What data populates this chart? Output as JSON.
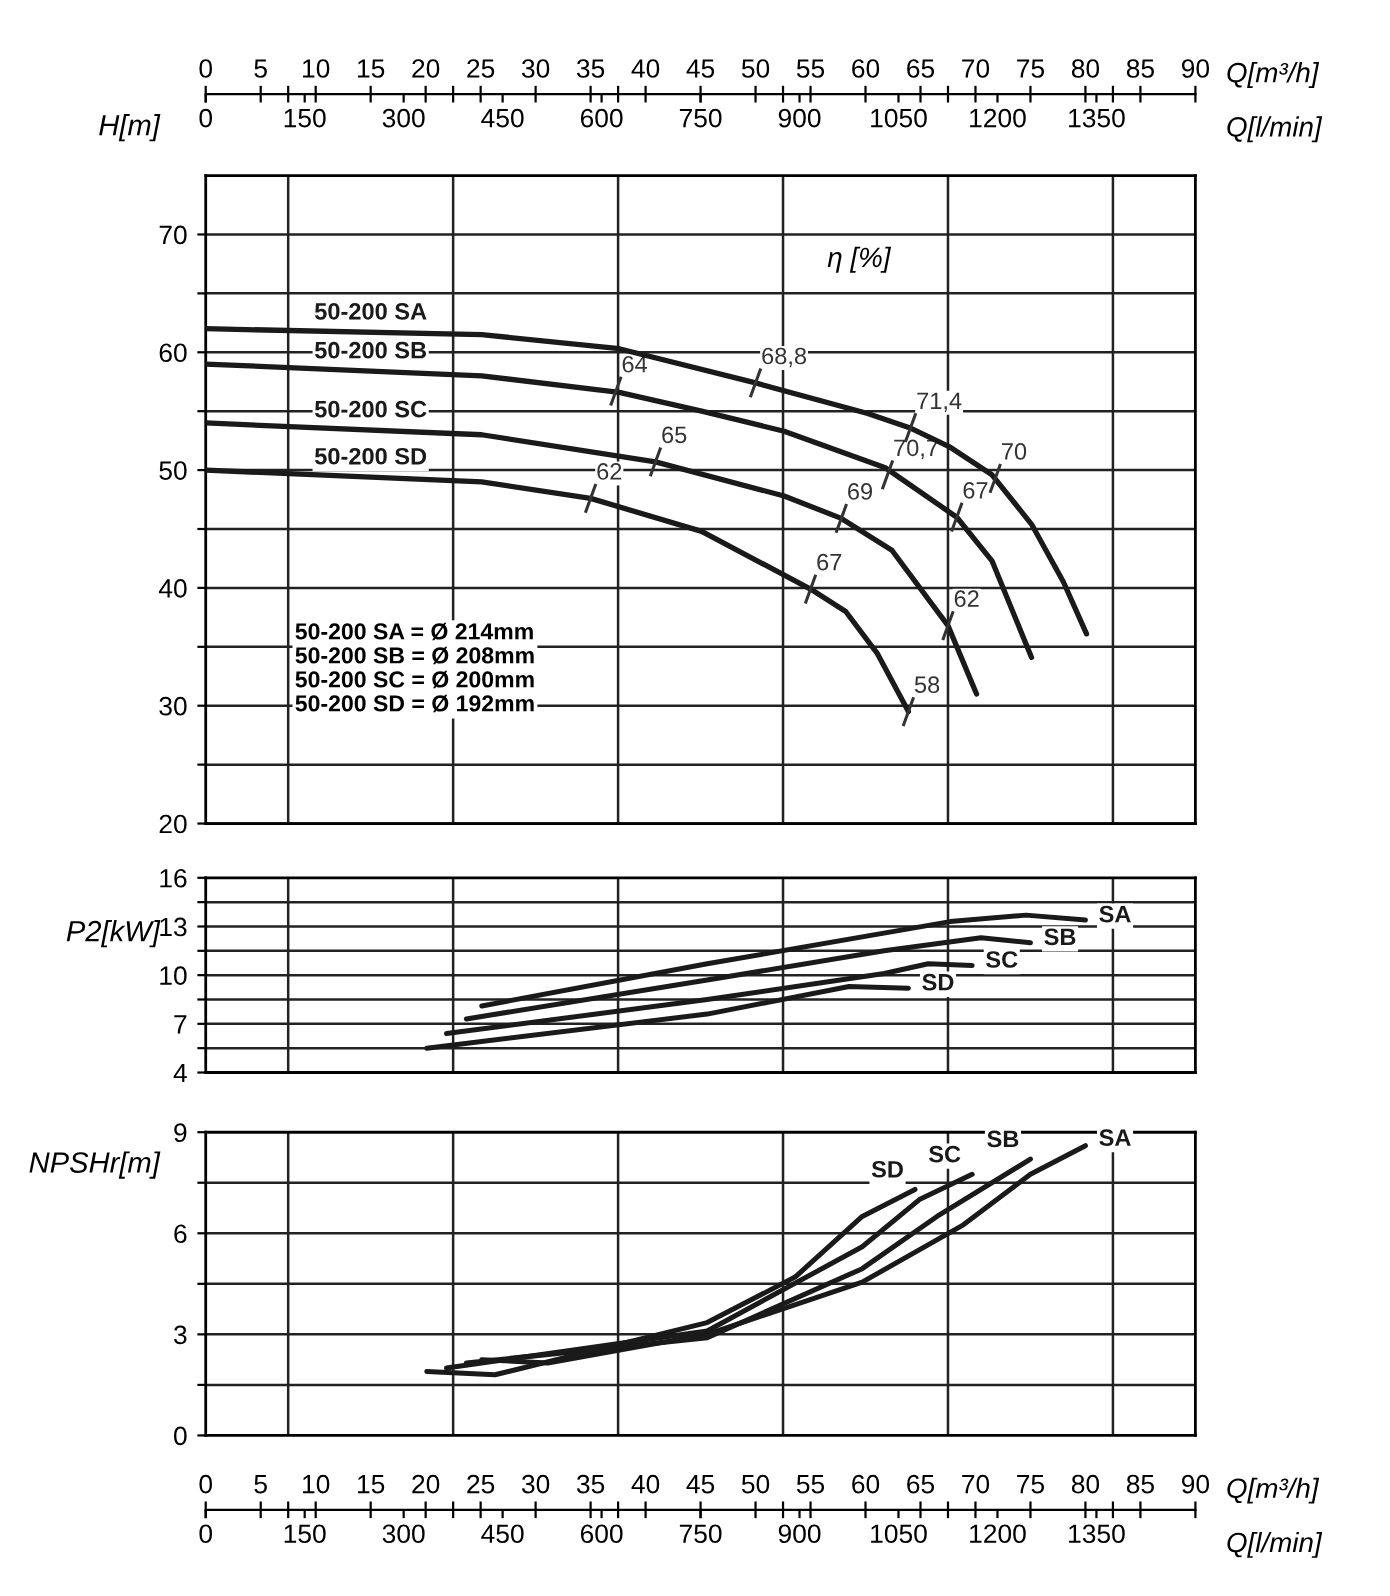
{
  "chart_data": [
    {
      "type": "line",
      "ylabel": "H[m]",
      "xlabel": "Q[m³/h]",
      "xlim": [
        0,
        90
      ],
      "ylim": [
        20,
        75
      ],
      "xticks": [
        0,
        5,
        {
          "value": 7.5,
          "label": null
        },
        10,
        15,
        20,
        {
          "value": 22.5,
          "label": null
        },
        25,
        30,
        35,
        {
          "value": 37.5,
          "label": null
        },
        40,
        45,
        50,
        {
          "value": 52.5,
          "label": null
        },
        55,
        60,
        65,
        {
          "value": 67.5,
          "label": null
        },
        70,
        75,
        80,
        {
          "value": 82.5,
          "label": null
        },
        85,
        90
      ],
      "yticks": [
        20,
        {
          "value": 25,
          "label": null
        },
        30,
        {
          "value": 35,
          "label": null
        },
        40,
        {
          "value": 45,
          "label": null
        },
        50,
        {
          "value": 55,
          "label": null
        },
        60,
        {
          "value": 65,
          "label": null
        },
        70
      ],
      "x2lim": [
        0,
        1500
      ],
      "x2ticks": [
        0,
        150,
        300,
        450,
        600,
        750,
        900,
        1050,
        1200,
        1350
      ],
      "x2label": "Q[l/min]",
      "grid": true,
      "legend": false,
      "marker": "none",
      "line_style": "solid",
      "series": [
        {
          "name": "50-200 SA",
          "color": "#1a1a1a",
          "x": [
            0,
            25.1,
            37.6,
            50,
            60.2,
            64,
            67.6,
            71.5,
            75.1,
            78,
            80.1
          ],
          "values": [
            62.0,
            61.5,
            60.3,
            57.4,
            54.8,
            53.6,
            52.0,
            49.6,
            45.4,
            40.5,
            36.1
          ]
        },
        {
          "name": "50-200 SB",
          "color": "#1a1a1a",
          "x": [
            0,
            25.1,
            37.6,
            45.1,
            52.6,
            61.8,
            68.3,
            71.5,
            75.1
          ],
          "values": [
            59.0,
            58.0,
            56.6,
            55.0,
            53.3,
            50.2,
            46.0,
            42.3,
            34.1
          ]
        },
        {
          "name": "50-200 SC",
          "color": "#1a1a1a",
          "x": [
            0,
            25.1,
            40.9,
            52.6,
            57.8,
            62.4,
            67.5,
            70.1
          ],
          "values": [
            54.0,
            53.0,
            50.7,
            47.8,
            45.9,
            43.2,
            36.8,
            31.0
          ]
        },
        {
          "name": "50-200 SD",
          "color": "#1a1a1a",
          "x": [
            0,
            25.1,
            35.0,
            45.1,
            55.0,
            58.2,
            61.1,
            63.9
          ],
          "values": [
            50.0,
            49.0,
            47.6,
            44.8,
            39.9,
            38.0,
            34.4,
            29.5
          ]
        }
      ],
      "annotations": [
        "η [%]",
        "50-200 SA = Ø 214mm\n50-200 SB = Ø 208mm\n50-200 SC = Ø 200mm\n50-200 SD = Ø 192mm",
        {
          "text": "64",
          "x": 37.3,
          "y": 56.7
        },
        {
          "text": "68,8",
          "x": 50,
          "y": 57.4
        },
        {
          "text": "71,4",
          "x": 64.1,
          "y": 53.6
        },
        {
          "text": "70",
          "x": 71.8,
          "y": 49.3
        },
        {
          "text": "70,7",
          "x": 62.0,
          "y": 49.6
        },
        {
          "text": "67",
          "x": 68.3,
          "y": 46.0
        },
        {
          "text": "65",
          "x": 40.9,
          "y": 50.7
        },
        {
          "text": "69",
          "x": 57.8,
          "y": 45.9
        },
        {
          "text": "62",
          "x": 67.5,
          "y": 36.8
        },
        {
          "text": "62",
          "x": 35.0,
          "y": 47.6
        },
        {
          "text": "67",
          "x": 55.0,
          "y": 39.9
        },
        {
          "text": "58",
          "x": 63.9,
          "y": 29.5
        }
      ]
    },
    {
      "type": "line",
      "ylabel": "P2[kW]",
      "xlim": [
        0,
        90
      ],
      "ylim": [
        4,
        16
      ],
      "xticks": [
        0,
        5,
        {
          "value": 7.5,
          "label": null
        },
        10,
        15,
        20,
        {
          "value": 22.5,
          "label": null
        },
        25,
        30,
        35,
        {
          "value": 37.5,
          "label": null
        },
        40,
        45,
        50,
        {
          "value": 52.5,
          "label": null
        },
        55,
        60,
        65,
        {
          "value": 67.5,
          "label": null
        },
        70,
        75,
        80,
        {
          "value": 82.5,
          "label": null
        },
        85,
        90
      ],
      "yticks": [
        4,
        {
          "value": 5.5,
          "label": null
        },
        7,
        {
          "value": 8.5,
          "label": null
        },
        10,
        {
          "value": 11.5,
          "label": null
        },
        13,
        {
          "value": 14.5,
          "label": null
        },
        16
      ],
      "tick_labels": "y",
      "grid": true,
      "legend": false,
      "marker": "none",
      "line_style": "solid",
      "series": [
        {
          "name": "SA",
          "color": "#1a1a1a",
          "x": [
            25.1,
            45.6,
            67.7,
            74.6,
            80.0
          ],
          "values": [
            8.1,
            10.7,
            13.3,
            13.7,
            13.4
          ]
        },
        {
          "name": "SB",
          "color": "#1a1a1a",
          "x": [
            23.7,
            45.6,
            61.7,
            70.5,
            75.0
          ],
          "values": [
            7.3,
            9.7,
            11.5,
            12.3,
            12.0
          ]
        },
        {
          "name": "SC",
          "color": "#1a1a1a",
          "x": [
            21.9,
            45.6,
            61.7,
            65.7,
            69.7
          ],
          "values": [
            6.4,
            8.5,
            10.1,
            10.7,
            10.6
          ]
        },
        {
          "name": "SD",
          "color": "#1a1a1a",
          "x": [
            20.1,
            45.6,
            58.5,
            63.9
          ],
          "values": [
            5.5,
            7.6,
            9.3,
            9.2
          ]
        }
      ]
    },
    {
      "type": "line",
      "ylabel": "NPSHr[m]",
      "xlabel": "Q[m³/h]",
      "xlim": [
        0,
        90
      ],
      "ylim": [
        0,
        9
      ],
      "xticks": [
        0,
        5,
        {
          "value": 7.5,
          "label": null
        },
        10,
        15,
        20,
        {
          "value": 22.5,
          "label": null
        },
        25,
        30,
        35,
        {
          "value": 37.5,
          "label": null
        },
        40,
        45,
        50,
        {
          "value": 52.5,
          "label": null
        },
        55,
        60,
        65,
        {
          "value": 67.5,
          "label": null
        },
        70,
        75,
        80,
        {
          "value": 82.5,
          "label": null
        },
        85,
        90
      ],
      "yticks": [
        0,
        {
          "value": 1.5,
          "label": null
        },
        3,
        {
          "value": 4.5,
          "label": null
        },
        6,
        {
          "value": 7.5,
          "label": null
        },
        9
      ],
      "x2lim": [
        0,
        1500
      ],
      "x2ticks": [
        0,
        150,
        300,
        450,
        600,
        750,
        900,
        1050,
        1200,
        1350
      ],
      "x2label": "Q[l/min]",
      "grid": true,
      "legend": false,
      "marker": "none",
      "line_style": "solid",
      "series": [
        {
          "name": "SA",
          "color": "#1a1a1a",
          "x": [
            25.1,
            31.1,
            45.6,
            59.7,
            68.9,
            75.0,
            80.0
          ],
          "values": [
            2.25,
            2.15,
            3.0,
            4.55,
            6.25,
            7.75,
            8.6
          ]
        },
        {
          "name": "SB",
          "color": "#1a1a1a",
          "x": [
            23.7,
            45.6,
            59.7,
            66.5,
            75.0
          ],
          "values": [
            2.15,
            2.9,
            4.95,
            6.5,
            8.2
          ]
        },
        {
          "name": "SC",
          "color": "#1a1a1a",
          "x": [
            21.9,
            45.6,
            59.7,
            64.9,
            69.7
          ],
          "values": [
            2.0,
            3.1,
            5.6,
            7.0,
            7.75
          ]
        },
        {
          "name": "SD",
          "color": "#1a1a1a",
          "x": [
            20.1,
            26.3,
            45.6,
            53.6,
            59.7,
            64.5
          ],
          "values": [
            1.9,
            1.8,
            3.35,
            4.7,
            6.5,
            7.3
          ]
        }
      ]
    }
  ]
}
